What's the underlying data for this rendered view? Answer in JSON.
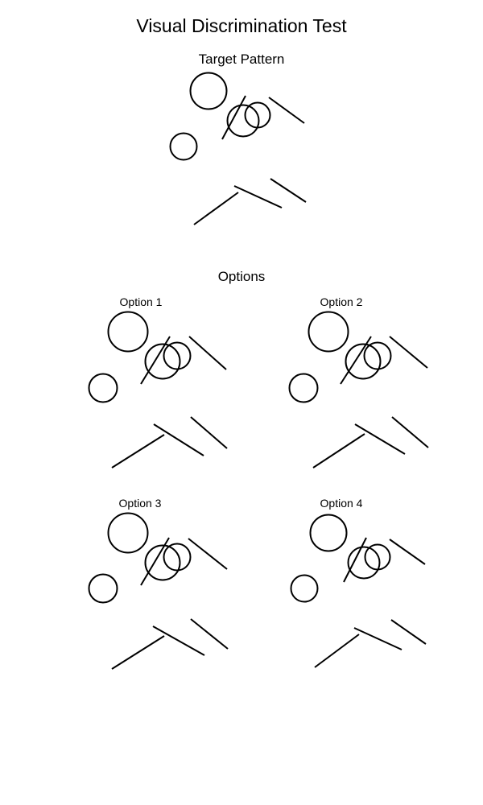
{
  "title": "Visual Discrimination Test",
  "target": {
    "heading": "Target Pattern"
  },
  "options": {
    "heading": "Options",
    "items": [
      {
        "label": "Option 1"
      },
      {
        "label": "Option 2"
      },
      {
        "label": "Option 3"
      },
      {
        "label": "Option 4"
      }
    ]
  },
  "colors": {
    "background": "#ffffff",
    "stroke": "#000000",
    "text": "#000000"
  }
}
